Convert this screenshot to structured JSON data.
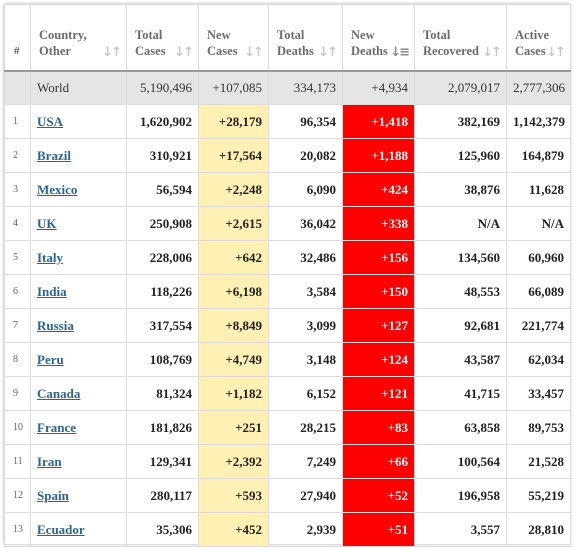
{
  "table": {
    "headers": [
      {
        "label": "#"
      },
      {
        "label": "Country,\nOther"
      },
      {
        "label": "Total\nCases"
      },
      {
        "label": "New\nCases"
      },
      {
        "label": "Total\nDeaths"
      },
      {
        "label": "New\nDeaths"
      },
      {
        "label": "Total\nRecovered"
      },
      {
        "label": "Active\nCases"
      }
    ],
    "world": {
      "name": "World",
      "total_cases": "5,190,496",
      "new_cases": "+107,085",
      "total_deaths": "334,173",
      "new_deaths": "+4,934",
      "total_recovered": "2,079,017",
      "active_cases": "2,777,306"
    },
    "rows": [
      {
        "idx": "1",
        "country": "USA",
        "total_cases": "1,620,902",
        "new_cases": "+28,179",
        "total_deaths": "96,354",
        "new_deaths": "+1,418",
        "total_recovered": "382,169",
        "active_cases": "1,142,379"
      },
      {
        "idx": "2",
        "country": "Brazil",
        "total_cases": "310,921",
        "new_cases": "+17,564",
        "total_deaths": "20,082",
        "new_deaths": "+1,188",
        "total_recovered": "125,960",
        "active_cases": "164,879"
      },
      {
        "idx": "3",
        "country": "Mexico",
        "total_cases": "56,594",
        "new_cases": "+2,248",
        "total_deaths": "6,090",
        "new_deaths": "+424",
        "total_recovered": "38,876",
        "active_cases": "11,628"
      },
      {
        "idx": "4",
        "country": "UK",
        "total_cases": "250,908",
        "new_cases": "+2,615",
        "total_deaths": "36,042",
        "new_deaths": "+338",
        "total_recovered": "N/A",
        "active_cases": "N/A"
      },
      {
        "idx": "5",
        "country": "Italy",
        "total_cases": "228,006",
        "new_cases": "+642",
        "total_deaths": "32,486",
        "new_deaths": "+156",
        "total_recovered": "134,560",
        "active_cases": "60,960"
      },
      {
        "idx": "6",
        "country": "India",
        "total_cases": "118,226",
        "new_cases": "+6,198",
        "total_deaths": "3,584",
        "new_deaths": "+150",
        "total_recovered": "48,553",
        "active_cases": "66,089"
      },
      {
        "idx": "7",
        "country": "Russia",
        "total_cases": "317,554",
        "new_cases": "+8,849",
        "total_deaths": "3,099",
        "new_deaths": "+127",
        "total_recovered": "92,681",
        "active_cases": "221,774"
      },
      {
        "idx": "8",
        "country": "Peru",
        "total_cases": "108,769",
        "new_cases": "+4,749",
        "total_deaths": "3,148",
        "new_deaths": "+124",
        "total_recovered": "43,587",
        "active_cases": "62,034"
      },
      {
        "idx": "9",
        "country": "Canada",
        "total_cases": "81,324",
        "new_cases": "+1,182",
        "total_deaths": "6,152",
        "new_deaths": "+121",
        "total_recovered": "41,715",
        "active_cases": "33,457"
      },
      {
        "idx": "10",
        "country": "France",
        "total_cases": "181,826",
        "new_cases": "+251",
        "total_deaths": "28,215",
        "new_deaths": "+83",
        "total_recovered": "63,858",
        "active_cases": "89,753"
      },
      {
        "idx": "11",
        "country": "Iran",
        "total_cases": "129,341",
        "new_cases": "+2,392",
        "total_deaths": "7,249",
        "new_deaths": "+66",
        "total_recovered": "100,564",
        "active_cases": "21,528"
      },
      {
        "idx": "12",
        "country": "Spain",
        "total_cases": "280,117",
        "new_cases": "+593",
        "total_deaths": "27,940",
        "new_deaths": "+52",
        "total_recovered": "196,958",
        "active_cases": "55,219"
      },
      {
        "idx": "13",
        "country": "Ecuador",
        "total_cases": "35,306",
        "new_cases": "+452",
        "total_deaths": "2,939",
        "new_deaths": "+51",
        "total_recovered": "3,557",
        "active_cases": "28,810"
      }
    ]
  },
  "icons": {
    "sort": "sort-arrows-icon",
    "sort_active": "sort-desc-icon"
  },
  "colors": {
    "new_cases_bg": "#fff0b3",
    "new_deaths_bg": "#ff0000",
    "world_row_bg": "#e5e5e5",
    "link": "#2a6496"
  }
}
